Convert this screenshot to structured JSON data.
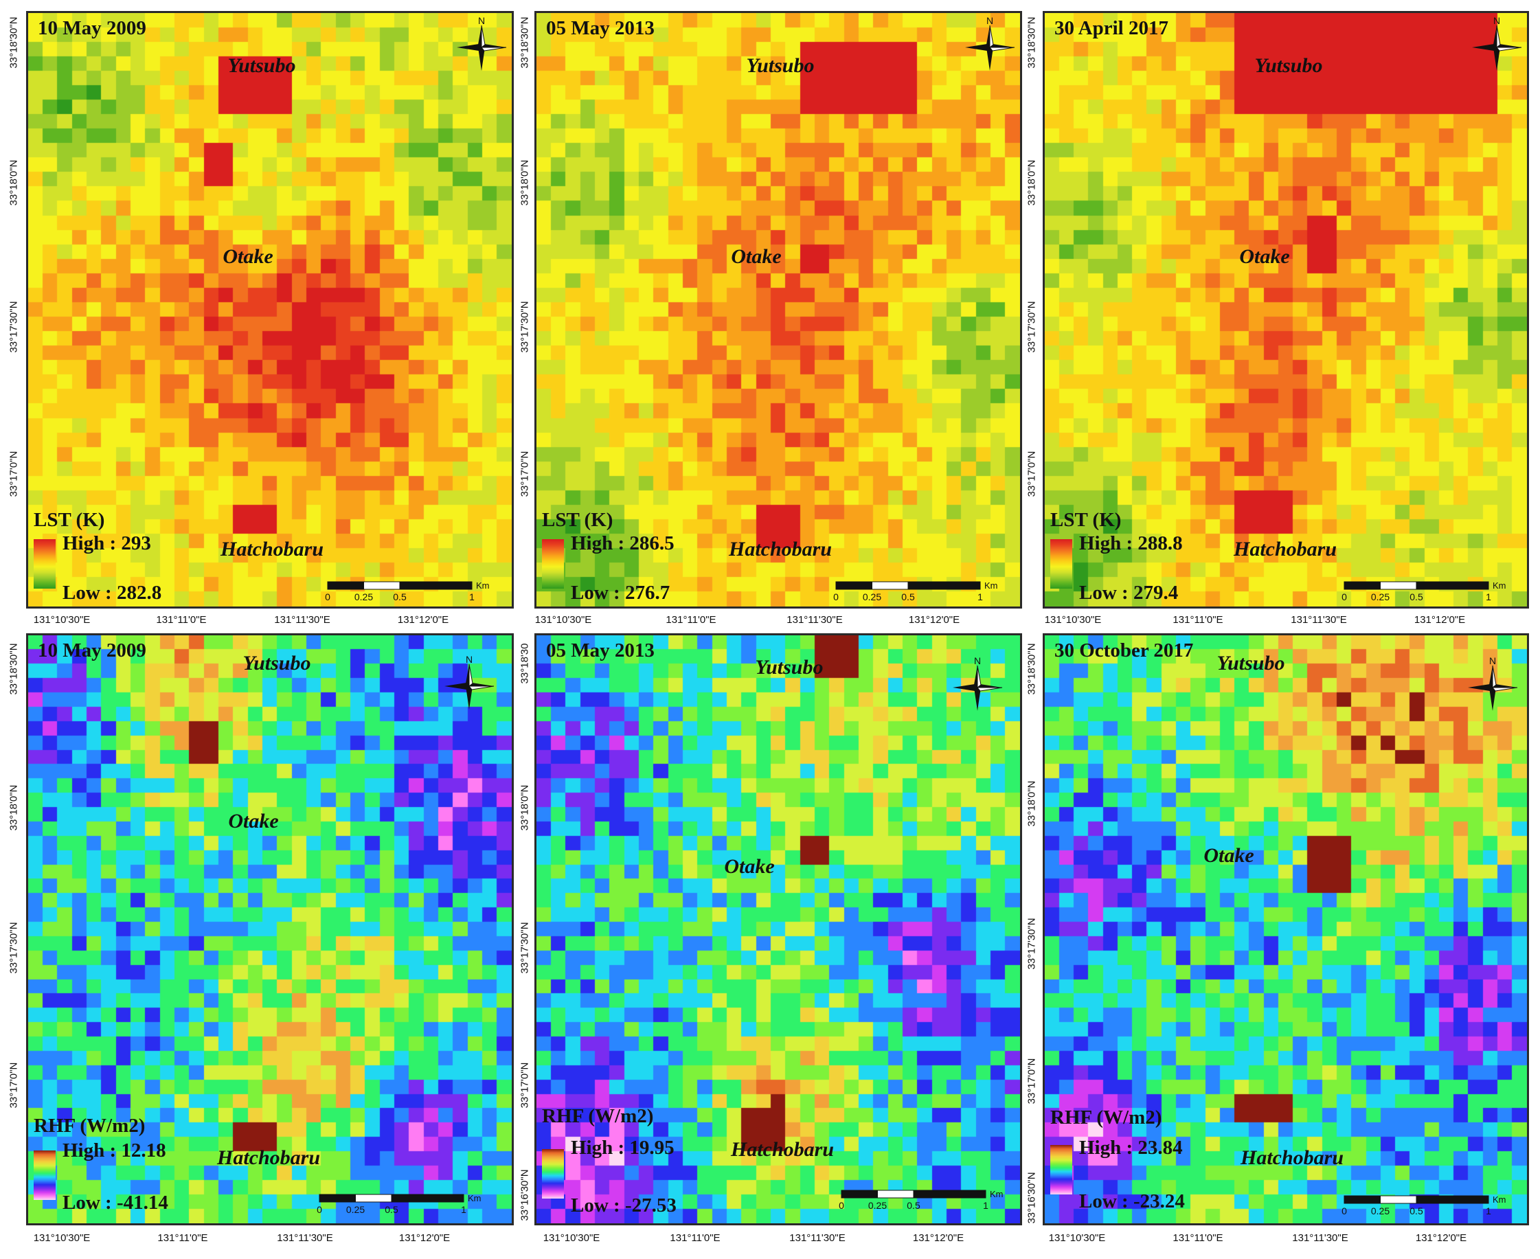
{
  "figure": {
    "panels": [
      {
        "id": "lst-2009",
        "date": "10 May 2009",
        "variable": "LST (K)",
        "high": "High : 293",
        "low": "Low : 282.8",
        "scheme": "lst",
        "places": {
          "north": "Yutsubo",
          "center": "Otake",
          "south": "Hatchobaru"
        },
        "hotspots": [
          [
            0.38,
            0.08,
            0.18,
            0.1
          ],
          [
            0.37,
            0.22,
            0.06,
            0.07
          ],
          [
            0.43,
            0.84,
            0.1,
            0.05
          ]
        ],
        "warm_regions": [
          [
            0.55,
            0.47,
            0.25
          ],
          [
            0.6,
            0.6,
            0.3
          ],
          [
            0.2,
            0.55,
            0.2
          ]
        ],
        "cool_regions": [
          [
            0.12,
            0.15,
            0.14
          ],
          [
            0.88,
            0.3,
            0.14
          ],
          [
            0.5,
            0.33,
            0.1
          ]
        ]
      },
      {
        "id": "lst-2013",
        "date": "05 May 2013",
        "variable": "LST (K)",
        "high": "High : 286.5",
        "low": "Low : 276.7",
        "scheme": "lst",
        "places": {
          "north": "Yutsubo",
          "center": "Otake",
          "south": "Hatchobaru"
        },
        "hotspots": [
          [
            0.56,
            0.05,
            0.22,
            0.12
          ],
          [
            0.55,
            0.38,
            0.07,
            0.06
          ],
          [
            0.44,
            0.82,
            0.1,
            0.08
          ]
        ],
        "warm_regions": [
          [
            0.6,
            0.25,
            0.28
          ],
          [
            0.5,
            0.58,
            0.3
          ]
        ],
        "cool_regions": [
          [
            0.12,
            0.3,
            0.14
          ],
          [
            0.9,
            0.55,
            0.12
          ],
          [
            0.1,
            0.9,
            0.12
          ]
        ]
      },
      {
        "id": "lst-2017",
        "date": "30 April 2017",
        "variable": "LST (K)",
        "high": "High : 288.8",
        "low": "Low : 279.4",
        "scheme": "lst",
        "places": {
          "north": "Yutsubo",
          "center": "Otake",
          "south": "Hatchobaru"
        },
        "hotspots": [
          [
            0.4,
            0.0,
            0.55,
            0.16
          ],
          [
            0.55,
            0.35,
            0.06,
            0.09
          ],
          [
            0.38,
            0.8,
            0.13,
            0.07
          ]
        ],
        "warm_regions": [
          [
            0.55,
            0.2,
            0.35
          ],
          [
            0.45,
            0.5,
            0.22
          ],
          [
            0.45,
            0.75,
            0.15
          ]
        ],
        "cool_regions": [
          [
            0.08,
            0.35,
            0.14
          ],
          [
            0.9,
            0.5,
            0.14
          ],
          [
            0.1,
            0.9,
            0.12
          ]
        ]
      },
      {
        "id": "rhf-2009",
        "date": "10 May 2009",
        "variable": "RHF (W/m2)",
        "high": "High : 12.18",
        "low": "Low : -41.14",
        "scheme": "rhf",
        "places": {
          "north": "Yutsubo",
          "center": "Otake",
          "south": "Hatchobaru"
        },
        "hotspots": [
          [
            0.32,
            0.15,
            0.06,
            0.08
          ],
          [
            0.42,
            0.82,
            0.11,
            0.05
          ]
        ],
        "warm_regions": [
          [
            0.3,
            0.1,
            0.22
          ],
          [
            0.55,
            0.75,
            0.2
          ]
        ],
        "cool_regions": [
          [
            0.1,
            0.12,
            0.15
          ],
          [
            0.9,
            0.3,
            0.14
          ],
          [
            0.8,
            0.85,
            0.12
          ]
        ]
      },
      {
        "id": "rhf-2013",
        "date": "05 May 2013",
        "variable": "RHF (W/m2)",
        "high": "High : 19.95",
        "low": "Low : -27.53",
        "scheme": "rhf",
        "places": {
          "north": "Yutsubo",
          "center": "Otake",
          "south": "Hatchobaru"
        },
        "hotspots": [
          [
            0.58,
            0.0,
            0.08,
            0.08
          ],
          [
            0.55,
            0.33,
            0.07,
            0.07
          ],
          [
            0.42,
            0.8,
            0.11,
            0.09
          ]
        ],
        "warm_regions": [
          [
            0.6,
            0.2,
            0.25
          ],
          [
            0.5,
            0.8,
            0.12
          ]
        ],
        "cool_regions": [
          [
            0.1,
            0.2,
            0.15
          ],
          [
            0.1,
            0.9,
            0.14
          ],
          [
            0.8,
            0.55,
            0.12
          ]
        ]
      },
      {
        "id": "rhf-2017",
        "date": "30 October 2017",
        "variable": "RHF (W/m2)",
        "high": "High : 23.84",
        "low": "Low : -23.24",
        "scheme": "rhf",
        "places": {
          "north": "Yutsubo",
          "center": "Otake",
          "south": "Hatchobaru"
        },
        "hotspots": [
          [
            0.55,
            0.35,
            0.08,
            0.09
          ],
          [
            0.38,
            0.78,
            0.13,
            0.06
          ]
        ],
        "warm_regions": [
          [
            0.55,
            0.15,
            0.3
          ],
          [
            0.8,
            0.1,
            0.2
          ]
        ],
        "cool_regions": [
          [
            0.08,
            0.4,
            0.14
          ],
          [
            0.9,
            0.6,
            0.14
          ],
          [
            0.1,
            0.85,
            0.12
          ]
        ]
      }
    ],
    "compass_letter": "N",
    "scale": {
      "unit": "Km",
      "labels": [
        "0",
        "0.25",
        "0.5",
        "1"
      ]
    },
    "lon_ticks": [
      "131°10'30\"E",
      "131°11'0\"E",
      "131°11'30\"E",
      "131°12'0\"E"
    ],
    "lat_ticks": [
      "33°18'30\"N",
      "33°18'0\"N",
      "33°17'30\"N",
      "33°17'0\"N"
    ],
    "lat_ticks_rhf2013": [
      "33°18'30",
      "33°18'0\"N",
      "33°17'30\"N",
      "33°17'0\"N",
      "33°16'30\"N"
    ],
    "lat_ticks_rhf2017": [
      "33°18'30\"N",
      "33°18'0\"N",
      "33°17'30\"N",
      "33°17'0\"N",
      "33°16'30\"N"
    ]
  }
}
